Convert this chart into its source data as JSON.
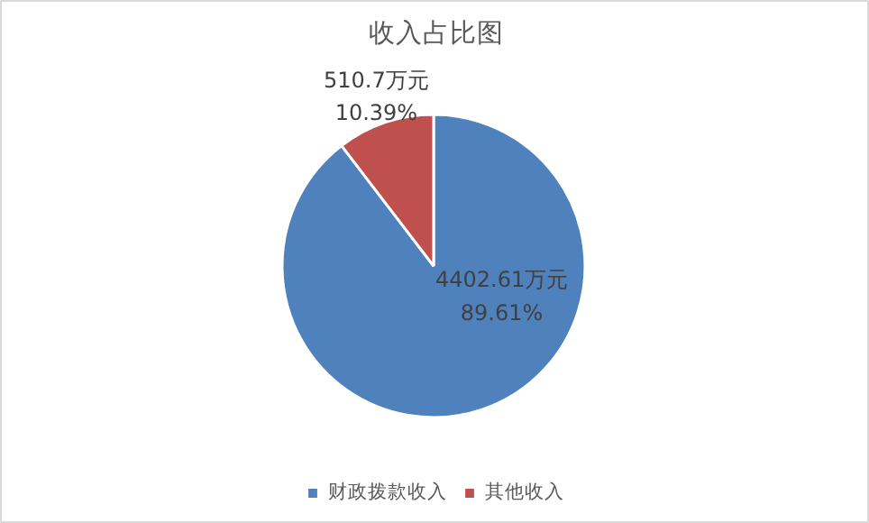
{
  "chart_data": {
    "type": "pie",
    "title": "收入占比图",
    "categories": [
      "财政拨款收入",
      "其他收入"
    ],
    "values": [
      4402.61,
      510.7
    ],
    "colors": [
      "#4f81bd",
      "#c0504d"
    ],
    "value_labels": [
      "4402.61万元\n89.61%",
      "510.7万元\n10.39%"
    ],
    "legend": "bottom"
  }
}
